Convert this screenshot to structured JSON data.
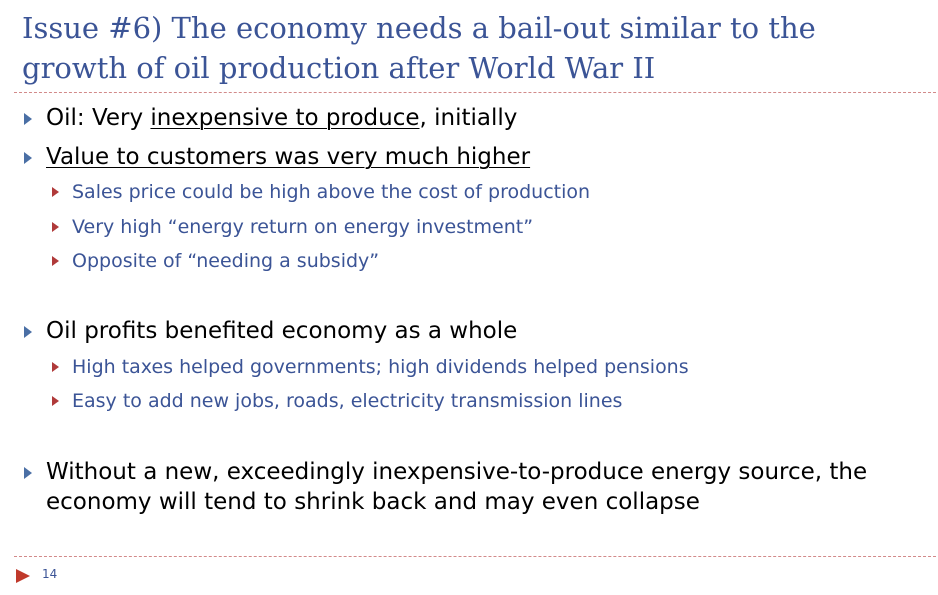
{
  "slide": {
    "title": "Issue #6) The economy needs a bail-out similar to the growth of oil production after World War II",
    "bullets": [
      {
        "prefix": "Oil: Very ",
        "underlined": "inexpensive to produce",
        "suffix": ", initially"
      },
      {
        "underlined": "Value to customers was very much higher",
        "sub": [
          "Sales price could be high above the cost of production",
          "Very high “energy return on energy investment”",
          "Opposite of “needing a subsidy”"
        ]
      },
      {
        "text": "Oil profits benefited economy as a whole",
        "sub": [
          "High taxes helped governments; high dividends helped pensions",
          "Easy to add new jobs, roads, electricity transmission lines"
        ]
      },
      {
        "text": "Without a new, exceedingly inexpensive-to-produce energy source, the economy will tend to shrink back and may even collapse"
      }
    ],
    "page_number": "14",
    "colors": {
      "title": "#3b5496",
      "level2_text": "#3b5496",
      "level1_bullet": "#4a6fa5",
      "level2_bullet": "#b03a3a",
      "divider": "#d28a8a",
      "footer_icon": "#c0392b"
    },
    "icons": {
      "level1_bullet": "triangle-bullet-icon",
      "level2_bullet": "triangle-bullet-icon",
      "footer": "play-triangle-icon"
    }
  }
}
